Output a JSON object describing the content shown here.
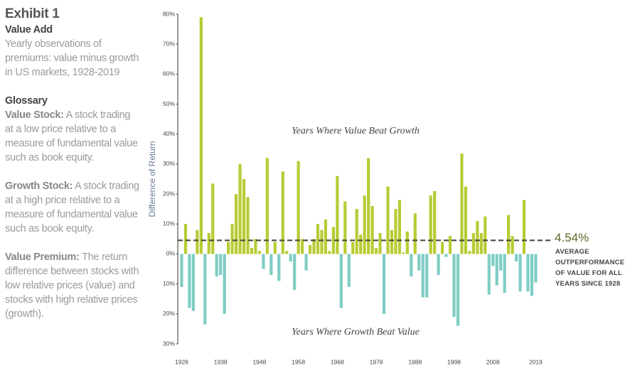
{
  "panel": {
    "exhibit": "Exhibit 1",
    "heading": "Value Add",
    "description": "Yearly observations of premiums: value minus growth in US markets, 1928-2019",
    "glossary_title": "Glossary",
    "glossary": [
      {
        "term": "Value Stock:",
        "definition": "A stock trading at a low price relative to a measure of fundamental value such as book equity."
      },
      {
        "term": "Growth Stock:",
        "definition": "A stock trading at a high price relative to a measure of fundamental value such as book equity."
      },
      {
        "term": "Value Premium:",
        "definition": "The return difference between stocks with low relative prices (value) and stocks with high relative prices (growth)."
      }
    ]
  },
  "chart_data": {
    "type": "bar",
    "y_label": "Difference of Return",
    "x": [
      1928,
      1929,
      1930,
      1931,
      1932,
      1933,
      1934,
      1935,
      1936,
      1937,
      1938,
      1939,
      1940,
      1941,
      1942,
      1943,
      1944,
      1945,
      1946,
      1947,
      1948,
      1949,
      1950,
      1951,
      1952,
      1953,
      1954,
      1955,
      1956,
      1957,
      1958,
      1959,
      1960,
      1961,
      1962,
      1963,
      1964,
      1965,
      1966,
      1967,
      1968,
      1969,
      1970,
      1971,
      1972,
      1973,
      1974,
      1975,
      1976,
      1977,
      1978,
      1979,
      1980,
      1981,
      1982,
      1983,
      1984,
      1985,
      1986,
      1987,
      1988,
      1989,
      1990,
      1991,
      1992,
      1993,
      1994,
      1995,
      1996,
      1997,
      1998,
      1999,
      2000,
      2001,
      2002,
      2003,
      2004,
      2005,
      2006,
      2007,
      2008,
      2009,
      2010,
      2011,
      2012,
      2013,
      2014,
      2015,
      2016,
      2017,
      2018,
      2019
    ],
    "values": [
      -11,
      10,
      -18,
      -19,
      8,
      79,
      -23.5,
      7,
      23.5,
      -7.5,
      -7,
      -20,
      4,
      10,
      20,
      30,
      25,
      19,
      2,
      5,
      1,
      -5,
      32,
      -7,
      4,
      -9,
      27.5,
      1,
      -2.5,
      -12,
      31,
      5,
      -5.5,
      3,
      5,
      10,
      8,
      11.5,
      1,
      9,
      26,
      -18,
      17.5,
      -11,
      4,
      15,
      6.5,
      19.5,
      32,
      16,
      2,
      7,
      -20,
      22.5,
      8,
      15,
      18,
      0.5,
      7.5,
      -7.5,
      13.5,
      -5.5,
      -14.5,
      -14.5,
      19.5,
      21,
      -7,
      4,
      -1,
      6,
      -21,
      -24,
      33.5,
      22.5,
      1,
      7,
      11,
      7,
      12.5,
      -13.5,
      -4,
      -10.5,
      -5.5,
      -13,
      13,
      6,
      -2.5,
      -12.5,
      18,
      -12.5,
      -14,
      -9.5
    ],
    "colors": {
      "positive": "#b8cb35",
      "negative": "#7fcdc5"
    },
    "xlim": [
      1927,
      2020.2
    ],
    "xticks": [
      1928,
      1938,
      1948,
      1958,
      1968,
      1978,
      1988,
      1998,
      2008,
      2019
    ],
    "ylim": [
      -30,
      80
    ],
    "yticks": [
      {
        "value": 80,
        "label": "80%"
      },
      {
        "value": 70,
        "label": "70%"
      },
      {
        "value": 60,
        "label": "60%"
      },
      {
        "value": 50,
        "label": "50%"
      },
      {
        "value": 40,
        "label": "40%"
      },
      {
        "value": 30,
        "label": "30%"
      },
      {
        "value": 20,
        "label": "20%"
      },
      {
        "value": 10,
        "label": "10%"
      },
      {
        "value": 0,
        "label": "0%"
      },
      {
        "value": -10,
        "label": "10%"
      },
      {
        "value": -20,
        "label": "20%"
      },
      {
        "value": -30,
        "label": "30%"
      }
    ],
    "annotations": {
      "above": "Years Where Value Beat Growth",
      "below": "Years Where Growth Beat Value"
    },
    "average": 4.54,
    "average_label": "4.54%",
    "average_caption": [
      "AVERAGE",
      "OUTPERFORMANCE",
      "OF VALUE FOR ALL",
      "YEARS SINCE 1928"
    ],
    "average_color": "#4b4b3b"
  }
}
